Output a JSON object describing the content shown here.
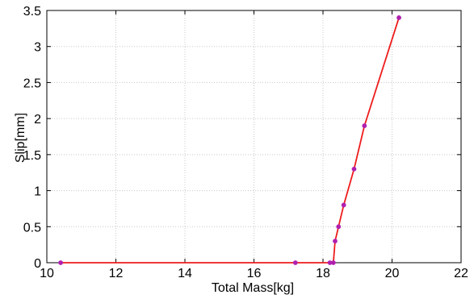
{
  "chart_data": {
    "type": "line",
    "xlabel": "Total Mass[kg]",
    "ylabel": "Slip[mm]",
    "xlim": [
      10,
      22
    ],
    "ylim": [
      0,
      3.5
    ],
    "xticks": [
      10,
      12,
      14,
      16,
      18,
      20,
      22
    ],
    "xtick_labels": [
      "10",
      "12",
      "14",
      "16",
      "18",
      "20",
      "22"
    ],
    "yticks": [
      0,
      0.5,
      1,
      1.5,
      2,
      2.5,
      3,
      3.5
    ],
    "ytick_labels": [
      "0",
      "0.5",
      "1",
      "1.5",
      "2",
      "2.5",
      "3",
      "3.5"
    ],
    "grid": true,
    "colors": {
      "line": "#ee1c1c",
      "marker": "#b020b0",
      "grid": "#c8c8c8",
      "axes": "#000000"
    },
    "series": [
      {
        "x": [
          10.4,
          17.2,
          18.2,
          18.3,
          18.35,
          18.45,
          18.6,
          18.9,
          19.2,
          20.2
        ],
        "y": [
          0,
          0,
          0,
          0,
          0.3,
          0.5,
          0.8,
          1.3,
          1.9,
          3.4
        ]
      }
    ]
  }
}
